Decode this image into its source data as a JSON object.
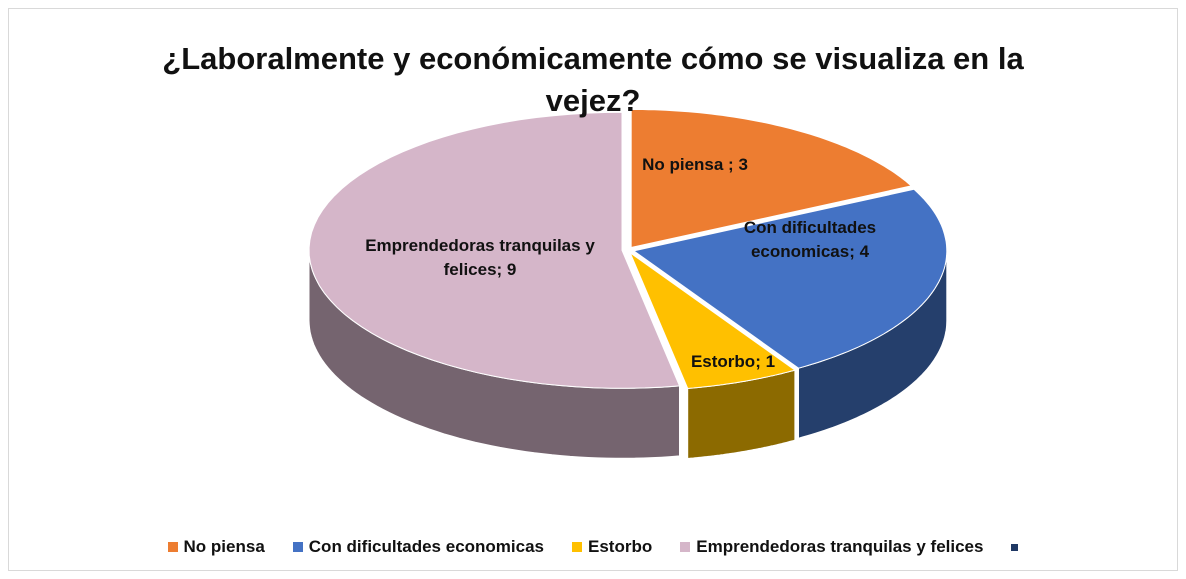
{
  "chart_data": {
    "type": "pie3d",
    "title": "¿Laboralmente y económicamente cómo se visualiza en la vejez?",
    "categories": [
      "No piensa",
      "Con dificultades economicas",
      "Estorbo",
      "Emprendedoras tranquilas y felices"
    ],
    "values": [
      3,
      4,
      1,
      9
    ],
    "value_labels": [
      "No piensa ; 3",
      "Con dificultades economicas; 4",
      "Estorbo; 1",
      "Emprendedoras tranquilas y felices; 9"
    ],
    "colors": [
      "#ed7d31",
      "#4472c4",
      "#ffc000",
      "#d5b6c9"
    ],
    "legend": "bottom"
  }
}
